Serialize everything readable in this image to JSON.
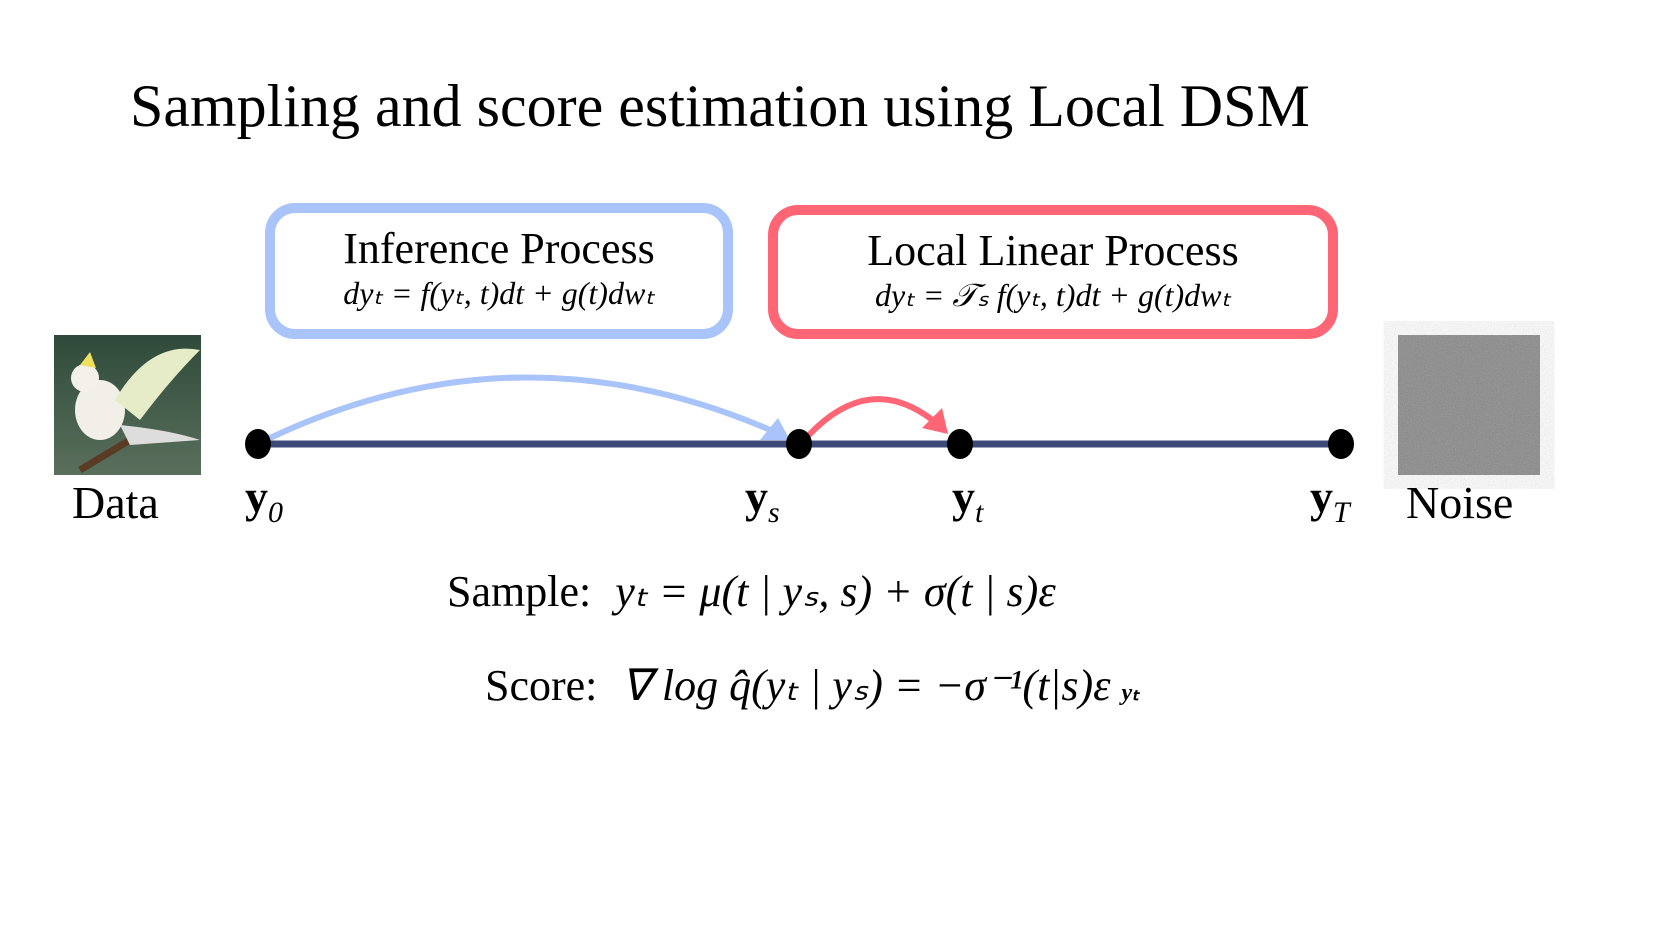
{
  "title": "Sampling and score estimation using Local DSM",
  "inference_box": {
    "heading": "Inference Process",
    "equation": "dyₜ = f(yₜ, t)dt + g(t)dwₜ",
    "color": "#a8c4fb"
  },
  "local_box": {
    "heading": "Local Linear Process",
    "equation": "dyₜ = 𝒯ₛ f(yₜ, t)dt + g(t)dwₜ",
    "color": "#ff6675"
  },
  "timeline": {
    "color": "#3b4a78",
    "points": [
      {
        "base": "y",
        "sub": "0"
      },
      {
        "base": "y",
        "sub": "s"
      },
      {
        "base": "y",
        "sub": "t"
      },
      {
        "base": "y",
        "sub": "T"
      }
    ]
  },
  "data_label": "Data",
  "noise_label": "Noise",
  "sample": {
    "label": "Sample:",
    "equation": "yₜ = μ(t | yₛ, s) + σ(t | s)ε"
  },
  "score": {
    "label": "Score:",
    "equation": "∇ log q̂(yₜ | yₛ) = −σ⁻¹(t|s)ε",
    "nabla_sub": "yₜ"
  }
}
